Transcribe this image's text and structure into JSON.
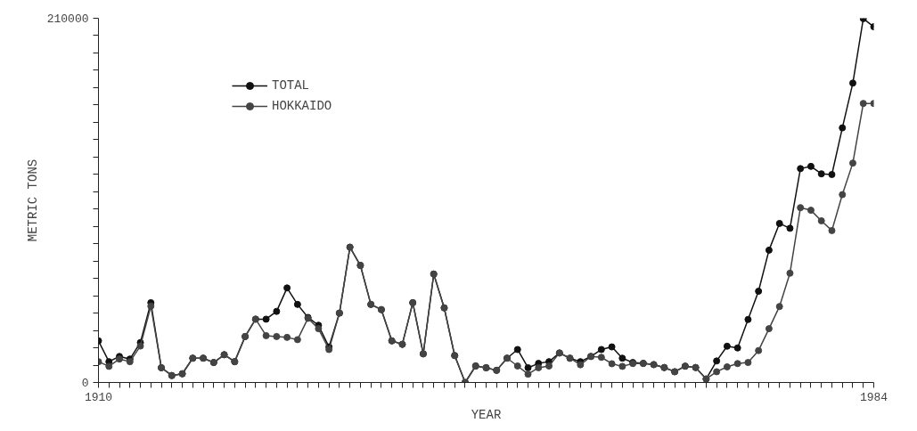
{
  "chart_data": {
    "type": "line",
    "xlabel": "YEAR",
    "ylabel": "METRIC TONS",
    "x": [
      1910,
      1911,
      1912,
      1913,
      1914,
      1915,
      1916,
      1917,
      1918,
      1919,
      1920,
      1921,
      1922,
      1923,
      1924,
      1925,
      1926,
      1927,
      1928,
      1929,
      1930,
      1931,
      1932,
      1933,
      1934,
      1935,
      1936,
      1937,
      1938,
      1939,
      1940,
      1941,
      1942,
      1943,
      1944,
      1945,
      1946,
      1947,
      1948,
      1949,
      1950,
      1951,
      1952,
      1953,
      1954,
      1955,
      1956,
      1957,
      1958,
      1959,
      1960,
      1961,
      1962,
      1963,
      1964,
      1965,
      1966,
      1967,
      1968,
      1969,
      1970,
      1971,
      1972,
      1973,
      1974,
      1975,
      1976,
      1977,
      1978,
      1979,
      1980,
      1981,
      1982,
      1983,
      1984
    ],
    "series": [
      {
        "name": "TOTAL",
        "color": "#111111",
        "marker": "circle",
        "values": [
          24000,
          12000,
          15000,
          13500,
          23000,
          46000,
          8500,
          4000,
          5000,
          14000,
          14000,
          11500,
          16000,
          12000,
          26500,
          36500,
          36500,
          41000,
          54500,
          45000,
          37500,
          33000,
          20500,
          40000,
          78000,
          67500,
          45000,
          42000,
          24000,
          22000,
          46000,
          16500,
          62500,
          43000,
          15500,
          0,
          9500,
          8500,
          7000,
          14000,
          19000,
          8500,
          11000,
          12000,
          17000,
          14000,
          12000,
          15000,
          19000,
          20500,
          14000,
          11500,
          11000,
          10300,
          8600,
          6200,
          9400,
          8600,
          2000,
          12400,
          20900,
          19900,
          36300,
          52600,
          76300,
          91700,
          88900,
          123300,
          124600,
          120300,
          119900,
          146800,
          172600,
          209800,
          205100
        ]
      },
      {
        "name": "HOKKAIDO",
        "color": "#444444",
        "marker": "circle",
        "values": [
          12000,
          9300,
          13500,
          12000,
          21000,
          44000,
          8500,
          4000,
          5000,
          14000,
          14000,
          11500,
          16000,
          12000,
          26500,
          36500,
          27000,
          26500,
          26000,
          24700,
          37000,
          31000,
          19000,
          40000,
          78000,
          67500,
          45000,
          42000,
          24000,
          22000,
          46000,
          16500,
          62500,
          43000,
          15500,
          0,
          9500,
          8500,
          7000,
          14000,
          9500,
          4800,
          8500,
          9500,
          17000,
          14000,
          10200,
          15000,
          14500,
          10800,
          9300,
          10900,
          11000,
          10300,
          8600,
          6200,
          9400,
          8600,
          2000,
          6200,
          9000,
          10900,
          11500,
          18400,
          31000,
          43800,
          63000,
          100800,
          99300,
          93200,
          87600,
          108300,
          126500,
          160900,
          160900
        ]
      }
    ],
    "xlim": [
      1910,
      1984
    ],
    "xticks": [
      1910,
      {
        "value": 1911,
        "label": null
      },
      {
        "value": 1912,
        "label": null
      },
      {
        "value": 1913,
        "label": null
      },
      {
        "value": 1914,
        "label": null
      },
      {
        "value": 1915,
        "label": null
      },
      {
        "value": 1916,
        "label": null
      },
      {
        "value": 1917,
        "label": null
      },
      {
        "value": 1918,
        "label": null
      },
      {
        "value": 1919,
        "label": null
      },
      {
        "value": 1920,
        "label": null
      },
      {
        "value": 1921,
        "label": null
      },
      {
        "value": 1922,
        "label": null
      },
      {
        "value": 1923,
        "label": null
      },
      {
        "value": 1924,
        "label": null
      },
      {
        "value": 1925,
        "label": null
      },
      {
        "value": 1926,
        "label": null
      },
      {
        "value": 1927,
        "label": null
      },
      {
        "value": 1928,
        "label": null
      },
      {
        "value": 1929,
        "label": null
      },
      {
        "value": 1930,
        "label": null
      },
      {
        "value": 1931,
        "label": null
      },
      {
        "value": 1932,
        "label": null
      },
      {
        "value": 1933,
        "label": null
      },
      {
        "value": 1934,
        "label": null
      },
      {
        "value": 1935,
        "label": null
      },
      {
        "value": 1936,
        "label": null
      },
      {
        "value": 1937,
        "label": null
      },
      {
        "value": 1938,
        "label": null
      },
      {
        "value": 1939,
        "label": null
      },
      {
        "value": 1940,
        "label": null
      },
      {
        "value": 1941,
        "label": null
      },
      {
        "value": 1942,
        "label": null
      },
      {
        "value": 1943,
        "label": null
      },
      {
        "value": 1944,
        "label": null
      },
      {
        "value": 1945,
        "label": null
      },
      {
        "value": 1946,
        "label": null
      },
      {
        "value": 1947,
        "label": null
      },
      {
        "value": 1948,
        "label": null
      },
      {
        "value": 1949,
        "label": null
      },
      {
        "value": 1950,
        "label": null
      },
      {
        "value": 1951,
        "label": null
      },
      {
        "value": 1952,
        "label": null
      },
      {
        "value": 1953,
        "label": null
      },
      {
        "value": 1954,
        "label": null
      },
      {
        "value": 1955,
        "label": null
      },
      {
        "value": 1956,
        "label": null
      },
      {
        "value": 1957,
        "label": null
      },
      {
        "value": 1958,
        "label": null
      },
      {
        "value": 1959,
        "label": null
      },
      {
        "value": 1960,
        "label": null
      },
      {
        "value": 1961,
        "label": null
      },
      {
        "value": 1962,
        "label": null
      },
      {
        "value": 1963,
        "label": null
      },
      {
        "value": 1964,
        "label": null
      },
      {
        "value": 1965,
        "label": null
      },
      {
        "value": 1966,
        "label": null
      },
      {
        "value": 1967,
        "label": null
      },
      {
        "value": 1968,
        "label": null
      },
      {
        "value": 1969,
        "label": null
      },
      {
        "value": 1970,
        "label": null
      },
      {
        "value": 1971,
        "label": null
      },
      {
        "value": 1972,
        "label": null
      },
      {
        "value": 1973,
        "label": null
      },
      {
        "value": 1974,
        "label": null
      },
      {
        "value": 1975,
        "label": null
      },
      {
        "value": 1976,
        "label": null
      },
      {
        "value": 1977,
        "label": null
      },
      {
        "value": 1978,
        "label": null
      },
      {
        "value": 1979,
        "label": null
      },
      {
        "value": 1980,
        "label": null
      },
      {
        "value": 1981,
        "label": null
      },
      {
        "value": 1982,
        "label": null
      },
      {
        "value": 1983,
        "label": null
      },
      1984
    ],
    "ylim": [
      0,
      210000
    ],
    "yticks": [
      0,
      {
        "value": 10000,
        "label": null
      },
      {
        "value": 20000,
        "label": null
      },
      {
        "value": 30000,
        "label": null
      },
      {
        "value": 40000,
        "label": null
      },
      {
        "value": 50000,
        "label": null
      },
      {
        "value": 60000,
        "label": null
      },
      {
        "value": 70000,
        "label": null
      },
      {
        "value": 80000,
        "label": null
      },
      {
        "value": 90000,
        "label": null
      },
      {
        "value": 100000,
        "label": null
      },
      {
        "value": 110000,
        "label": null
      },
      {
        "value": 120000,
        "label": null
      },
      {
        "value": 130000,
        "label": null
      },
      {
        "value": 140000,
        "label": null
      },
      {
        "value": 150000,
        "label": null
      },
      {
        "value": 160000,
        "label": null
      },
      {
        "value": 170000,
        "label": null
      },
      {
        "value": 180000,
        "label": null
      },
      {
        "value": 190000,
        "label": null
      },
      {
        "value": 200000,
        "label": null
      },
      210000
    ],
    "grid": false,
    "legend": "top left",
    "line_style": "solid"
  }
}
